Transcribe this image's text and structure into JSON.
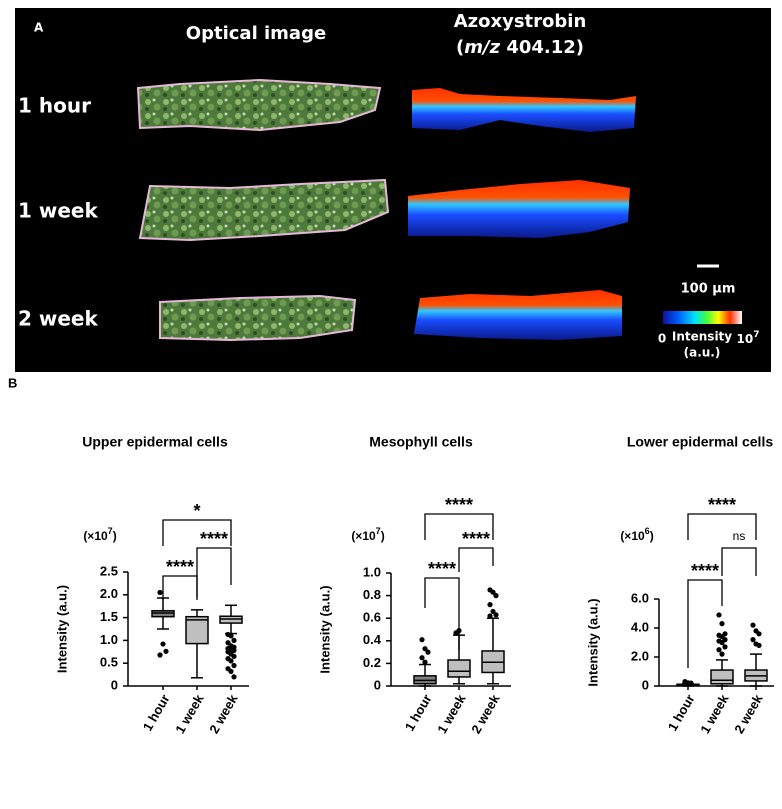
{
  "panel_a": {
    "label": "A",
    "col1": "Optical image",
    "col2": "Azoxystrobin",
    "col2_sub": [
      "(",
      "m/z",
      " 404.12)"
    ],
    "rows": [
      "1 hour",
      "1 week",
      "2 week"
    ],
    "scale_bar": "100 µm",
    "colorbar": {
      "min": "0",
      "title": "Intensity",
      "unit": "(a.u.)",
      "max_base": "10",
      "max_exponent": "7"
    }
  },
  "panel_b": {
    "label": "B"
  },
  "chart_data": [
    {
      "type": "box",
      "title": "Upper epidermal cells",
      "y_label": "Intensity (a.u.)",
      "multiplier": {
        "prefix": "(×10",
        "exponent": "7",
        "suffix": ")"
      },
      "categories": [
        "1 hour",
        "1 week",
        "2 week"
      ],
      "colors": [
        "#7f7f7f",
        "#bfbfbf",
        "#bfbfbf"
      ],
      "boxes": [
        {
          "min": 1.25,
          "q1": 1.52,
          "median": 1.6,
          "q3": 1.65,
          "max": 1.93,
          "outliers": [
            2.05,
            0.92,
            0.76,
            0.68
          ]
        },
        {
          "min": 0.18,
          "q1": 0.93,
          "median": 1.45,
          "q3": 1.52,
          "max": 1.67,
          "outliers": []
        },
        {
          "min": 1.15,
          "q1": 1.38,
          "median": 1.47,
          "q3": 1.53,
          "max": 1.77,
          "outliers": [
            1.13,
            1.1,
            1.0,
            0.95,
            0.88,
            0.85,
            0.82,
            0.8,
            0.78,
            0.75,
            0.7,
            0.65,
            0.6,
            0.55,
            0.45,
            0.38,
            0.32,
            0.2
          ]
        }
      ],
      "ylim": [
        0,
        2.5
      ],
      "yticks": [
        0,
        0.5,
        {
          "value": 1,
          "label": "1.0"
        },
        1.5,
        {
          "value": 2,
          "label": "2.0"
        },
        2.5
      ],
      "annotations": [
        "*",
        "****",
        "****"
      ]
    },
    {
      "type": "box",
      "title": "Mesophyll cells",
      "y_label": "Intensity (a.u.)",
      "multiplier": {
        "prefix": "(×10",
        "exponent": "7",
        "suffix": ")"
      },
      "categories": [
        "1 hour",
        "1 week",
        "2 week"
      ],
      "colors": [
        "#7f7f7f",
        "#bfbfbf",
        "#bfbfbf"
      ],
      "boxes": [
        {
          "min": 0,
          "q1": 0.02,
          "median": 0.05,
          "q3": 0.09,
          "max": 0.19,
          "outliers": [
            0.41,
            0.33,
            0.3,
            0.25,
            0.21
          ]
        },
        {
          "min": 0.02,
          "q1": 0.08,
          "median": 0.13,
          "q3": 0.23,
          "max": 0.45,
          "outliers": [
            0.47,
            0.49
          ]
        },
        {
          "min": 0.02,
          "q1": 0.12,
          "median": 0.21,
          "q3": 0.31,
          "max": 0.6,
          "outliers": [
            0.85,
            0.83,
            0.8,
            0.72,
            0.66,
            0.63,
            0.62
          ]
        }
      ],
      "ylim": [
        0,
        1
      ],
      "yticks": [
        0,
        0.2,
        0.4,
        0.6,
        0.8,
        {
          "value": 1,
          "label": "1.0"
        }
      ],
      "annotations": [
        "****",
        "****",
        "****"
      ]
    },
    {
      "type": "box",
      "title": "Lower epidermal cells",
      "y_label": "Intensity (a.u.)",
      "multiplier": {
        "prefix": "(×10",
        "exponent": "6",
        "suffix": ")"
      },
      "categories": [
        "1 hour",
        "1 week",
        "2 week"
      ],
      "colors": [
        "#7f7f7f",
        "#bfbfbf",
        "#bfbfbf"
      ],
      "boxes": [
        {
          "min": 0,
          "q1": 0.05,
          "median": 0.08,
          "q3": 0.12,
          "max": 0.15,
          "outliers": [
            0.3,
            0.22,
            0.2,
            0.18
          ]
        },
        {
          "min": 0,
          "q1": 0.15,
          "median": 0.4,
          "q3": 1.1,
          "max": 1.8,
          "outliers": [
            4.9,
            4.3,
            3.6,
            3.5,
            3.4,
            3.2,
            3.1,
            3.0,
            2.7,
            2.5,
            2.2
          ]
        },
        {
          "min": 0,
          "q1": 0.35,
          "median": 0.7,
          "q3": 1.1,
          "max": 2.2,
          "outliers": [
            4.2,
            3.8,
            3.6,
            3.2,
            2.9,
            2.8
          ]
        }
      ],
      "ylim": [
        0,
        6
      ],
      "yticks": [
        0,
        {
          "value": 2,
          "label": "2.0"
        },
        {
          "value": 4,
          "label": "4.0"
        },
        {
          "value": 6,
          "label": "6.0"
        }
      ],
      "annotations": [
        "****",
        "ns",
        "****"
      ]
    }
  ]
}
